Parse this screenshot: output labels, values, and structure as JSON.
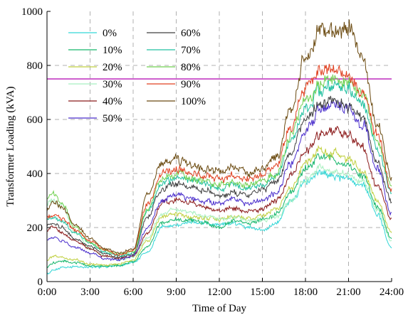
{
  "chart_data": {
    "type": "line",
    "xlabel": "Time of Day",
    "ylabel": "Transformer Loading (kVA)",
    "xlim": [
      0,
      24
    ],
    "ylim": [
      0,
      1000
    ],
    "x_ticks": [
      0,
      3,
      6,
      9,
      12,
      15,
      18,
      21,
      24
    ],
    "x_tick_labels": [
      "0:00",
      "3:00",
      "6:00",
      "9:00",
      "12:00",
      "15:00",
      "18:00",
      "21:00",
      "24:00"
    ],
    "y_ticks": [
      0,
      200,
      400,
      600,
      800,
      1000
    ],
    "y_tick_labels": [
      "0",
      "200",
      "400",
      "600",
      "800",
      "1000"
    ],
    "grid": true,
    "legend_position": "top-left",
    "reference_line": {
      "y": 750,
      "color": "#b000b0"
    },
    "x": [
      0,
      0.5,
      1,
      2,
      3,
      4,
      5,
      6,
      7,
      8,
      9,
      10,
      11,
      12,
      13,
      14,
      15,
      16,
      17,
      18,
      19,
      20,
      21,
      22,
      23,
      24
    ],
    "series": [
      {
        "name": "0%",
        "color": "#33d6d6",
        "values": [
          30,
          45,
          50,
          55,
          55,
          55,
          60,
          70,
          110,
          200,
          210,
          220,
          215,
          210,
          215,
          200,
          190,
          220,
          300,
          370,
          400,
          390,
          380,
          360,
          250,
          125
        ]
      },
      {
        "name": "10%",
        "color": "#16b66b",
        "values": [
          55,
          70,
          75,
          70,
          60,
          55,
          60,
          75,
          130,
          220,
          230,
          225,
          220,
          200,
          225,
          215,
          230,
          250,
          330,
          420,
          460,
          450,
          430,
          390,
          280,
          160
        ]
      },
      {
        "name": "20%",
        "color": "#c0d040",
        "values": [
          80,
          95,
          90,
          80,
          65,
          60,
          65,
          80,
          150,
          240,
          250,
          240,
          235,
          230,
          240,
          230,
          245,
          270,
          350,
          440,
          490,
          470,
          450,
          410,
          300,
          180
        ]
      },
      {
        "name": "30%",
        "color": "#a8f0c0",
        "values": [
          290,
          300,
          280,
          180,
          120,
          95,
          80,
          90,
          160,
          250,
          265,
          255,
          245,
          230,
          240,
          230,
          225,
          240,
          300,
          380,
          420,
          410,
          395,
          370,
          270,
          150
        ]
      },
      {
        "name": "40%",
        "color": "#8b1a1a",
        "values": [
          190,
          200,
          180,
          150,
          120,
          95,
          85,
          95,
          180,
          290,
          300,
          290,
          270,
          260,
          270,
          260,
          270,
          300,
          390,
          480,
          540,
          560,
          540,
          490,
          360,
          230
        ]
      },
      {
        "name": "50%",
        "color": "#4a2ecc",
        "values": [
          155,
          165,
          150,
          125,
          105,
          85,
          80,
          95,
          200,
          300,
          320,
          310,
          295,
          290,
          305,
          290,
          300,
          330,
          440,
          560,
          640,
          665,
          640,
          580,
          420,
          250
        ]
      },
      {
        "name": "60%",
        "color": "#404040",
        "values": [
          210,
          215,
          200,
          160,
          130,
          105,
          90,
          100,
          240,
          340,
          360,
          350,
          335,
          320,
          330,
          320,
          340,
          370,
          480,
          600,
          660,
          670,
          650,
          600,
          440,
          300
        ]
      },
      {
        "name": "70%",
        "color": "#20c0a0",
        "values": [
          235,
          240,
          225,
          180,
          140,
          110,
          95,
          105,
          260,
          360,
          380,
          375,
          360,
          345,
          355,
          345,
          360,
          390,
          520,
          640,
          700,
          720,
          705,
          660,
          500,
          330
        ]
      },
      {
        "name": "80%",
        "color": "#70d050",
        "values": [
          310,
          320,
          290,
          200,
          145,
          115,
          100,
          110,
          270,
          380,
          395,
          385,
          370,
          355,
          365,
          355,
          370,
          400,
          540,
          670,
          730,
          750,
          735,
          690,
          520,
          350
        ]
      },
      {
        "name": "90%",
        "color": "#e04020",
        "values": [
          240,
          250,
          235,
          190,
          150,
          120,
          100,
          115,
          290,
          400,
          415,
          405,
          390,
          380,
          390,
          380,
          395,
          430,
          580,
          720,
          770,
          780,
          760,
          700,
          540,
          340
        ]
      },
      {
        "name": "100%",
        "color": "#6b4a10",
        "values": [
          265,
          300,
          275,
          210,
          160,
          125,
          105,
          120,
          320,
          440,
          450,
          430,
          415,
          405,
          420,
          405,
          420,
          460,
          640,
          830,
          920,
          930,
          940,
          820,
          580,
          380
        ]
      }
    ]
  }
}
